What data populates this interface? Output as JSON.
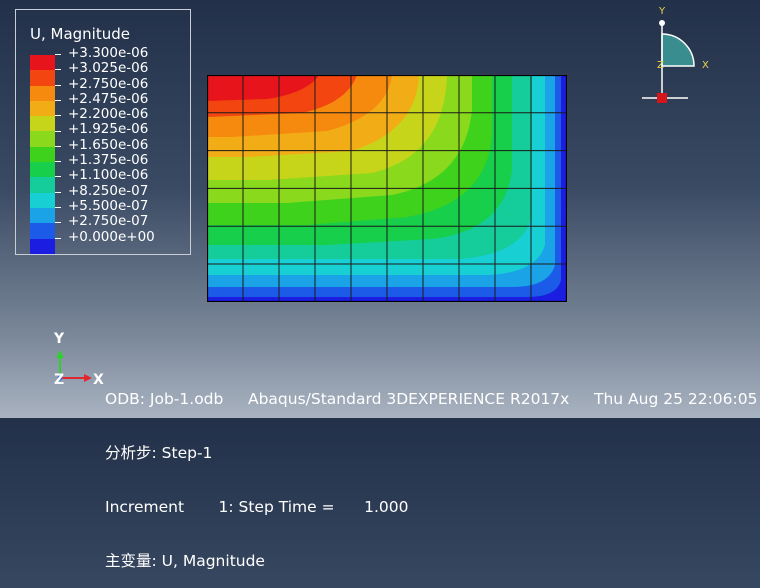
{
  "legend": {
    "title": "U, Magnitude",
    "entries": [
      "+3.300e-06",
      "+3.025e-06",
      "+2.750e-06",
      "+2.475e-06",
      "+2.200e-06",
      "+1.925e-06",
      "+1.650e-06",
      "+1.375e-06",
      "+1.100e-06",
      "+8.250e-07",
      "+5.500e-07",
      "+2.750e-07",
      "+0.000e+00"
    ],
    "colors": [
      "#e8141b",
      "#f2450f",
      "#f58a0e",
      "#f2ad16",
      "#c7d51a",
      "#8ad91c",
      "#3fd21c",
      "#17cf4a",
      "#14cd9a",
      "#18d0d4",
      "#1aa3e6",
      "#1c5ae8",
      "#1b1de0"
    ]
  },
  "info": {
    "line1": "ODB: Job-1.odb     Abaqus/Standard 3DEXPERIENCE R2017x     Thu Aug 25 22:06:05",
    "line2": "分析步: Step-1",
    "line3": "Increment       1: Step Time =      1.000",
    "line4": "主变量: U, Magnitude"
  },
  "triad": {
    "y": "Y",
    "z": "Z",
    "x": "X"
  },
  "view_triad": {
    "y": "Y",
    "x": "X",
    "z": "Z"
  }
}
